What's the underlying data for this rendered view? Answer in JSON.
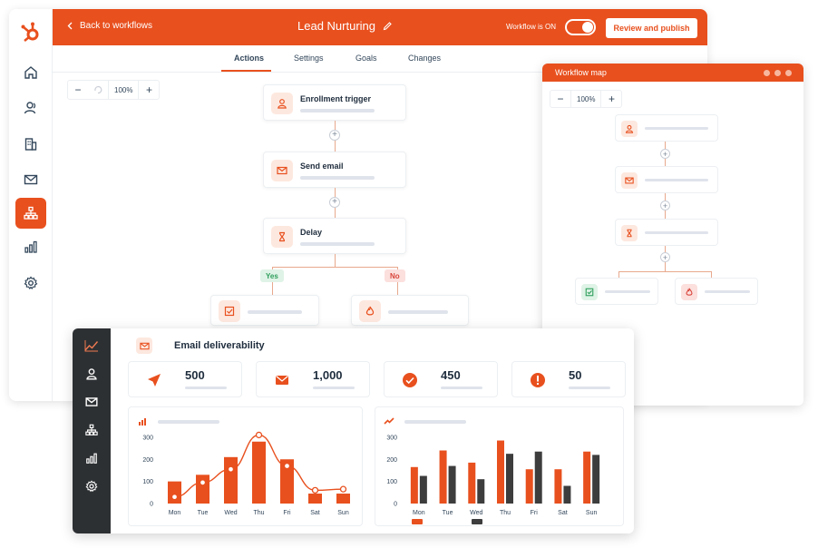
{
  "colors": {
    "accent": "#e8501e",
    "dark_bar": "#3d3d3d",
    "dark_sidebar": "#2d3033",
    "placeholder": "#dfe3eb",
    "yes": "#2e9e5b",
    "no": "#d9433a"
  },
  "topbar": {
    "back_label": "Back to workflows",
    "title": "Lead Nurturing",
    "status": "Workflow is ON",
    "toggle_on": true,
    "publish_label": "Review and publish"
  },
  "sidebar": {
    "items": [
      "hubspot-logo",
      "home-icon",
      "contacts-icon",
      "companies-icon",
      "email-icon",
      "workflows-icon",
      "reports-icon",
      "settings-icon"
    ],
    "active": "workflows-icon"
  },
  "tabs": [
    {
      "label": "Actions",
      "active": true
    },
    {
      "label": "Settings",
      "active": false
    },
    {
      "label": "Goals",
      "active": false
    },
    {
      "label": "Changes",
      "active": false
    }
  ],
  "zoom": {
    "value": "100%",
    "minus": "−",
    "plus": "+"
  },
  "workflow": {
    "nodes": [
      {
        "title": "Enrollment trigger",
        "icon": "person-icon"
      },
      {
        "title": "Send email",
        "icon": "envelope-icon"
      },
      {
        "title": "Delay",
        "icon": "hourglass-icon"
      }
    ],
    "branch_yes": "Yes",
    "branch_no": "No",
    "branch_icons": [
      "checkbox-icon",
      "flame-icon"
    ]
  },
  "map": {
    "title": "Workflow map",
    "zoom": "100%",
    "node_icons": [
      "person-icon",
      "envelope-icon",
      "hourglass-icon"
    ],
    "branch_icons": [
      "checkbox-icon",
      "flame-icon"
    ]
  },
  "dashboard": {
    "title": "Email deliverability",
    "sidebar_icons": [
      "trend-icon",
      "person-icon",
      "envelope-icon",
      "network-icon",
      "bar-chart-icon",
      "gear-icon"
    ],
    "stats": [
      {
        "value": "500",
        "icon": "send-icon"
      },
      {
        "value": "1,000",
        "icon": "envelope-icon"
      },
      {
        "value": "450",
        "icon": "check-circle-icon"
      },
      {
        "value": "50",
        "icon": "alert-circle-icon"
      }
    ]
  },
  "chart_data": [
    {
      "type": "bar",
      "categories": [
        "Mon",
        "Tue",
        "Wed",
        "Thu",
        "Fri",
        "Sat",
        "Sun"
      ],
      "series": [
        {
          "kind": "bar",
          "values": [
            100,
            130,
            210,
            280,
            200,
            45,
            45
          ],
          "color": "#e8501e"
        },
        {
          "kind": "line",
          "values": [
            30,
            95,
            155,
            310,
            170,
            60,
            65
          ],
          "color": "#e8501e"
        }
      ],
      "yticks": [
        "300",
        "200",
        "100",
        "0"
      ],
      "ylim": [
        0,
        320
      ],
      "header_icon": "bar-chart-icon"
    },
    {
      "type": "bar",
      "categories": [
        "Mon",
        "Tue",
        "Wed",
        "Thu",
        "Fri",
        "Sat",
        "Sun"
      ],
      "series": [
        {
          "values": [
            165,
            240,
            185,
            285,
            155,
            155,
            235
          ],
          "color": "#e8501e"
        },
        {
          "values": [
            125,
            170,
            110,
            225,
            235,
            80,
            220
          ],
          "color": "#3d3d3d"
        }
      ],
      "yticks": [
        "300",
        "200",
        "100",
        "0"
      ],
      "ylim": [
        0,
        320
      ],
      "header_icon": "trend-icon"
    }
  ]
}
